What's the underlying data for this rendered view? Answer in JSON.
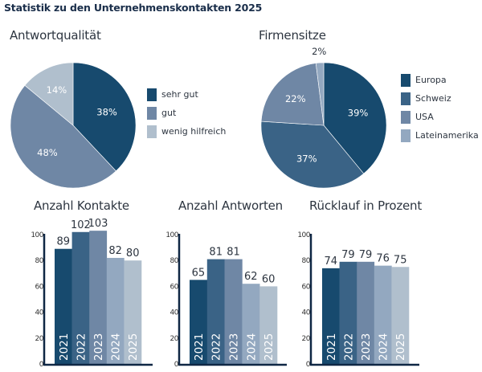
{
  "page_title": "Statistik zu den Unternehmenskontakten 2025",
  "colors": {
    "c1": "#174a6e",
    "c2": "#3a6386",
    "c3": "#6f87a5",
    "c4": "#93a8c0",
    "c5": "#b0bfcd",
    "axis": "#0f2744"
  },
  "chart_data": [
    {
      "type": "pie",
      "title": "Antwortqualität",
      "slices": [
        {
          "label": "sehr gut",
          "value": 38,
          "display": "38%",
          "color": "#174a6e"
        },
        {
          "label": "gut",
          "value": 48,
          "display": "48%",
          "color": "#6f87a5"
        },
        {
          "label": "wenig hilfreich",
          "value": 14,
          "display": "14%",
          "color": "#b0bfcd"
        }
      ],
      "legend": "right"
    },
    {
      "type": "pie",
      "title": "Firmensitze",
      "slices": [
        {
          "label": "Europa",
          "value": 39,
          "display": "39%",
          "color": "#174a6e"
        },
        {
          "label": "Schweiz",
          "value": 37,
          "display": "37%",
          "color": "#3a6386"
        },
        {
          "label": "USA",
          "value": 22,
          "display": "22%",
          "color": "#6f87a5"
        },
        {
          "label": "Lateinamerika",
          "value": 2,
          "display": "2%",
          "color": "#93a8c0"
        }
      ],
      "legend": "right"
    },
    {
      "type": "bar",
      "title": "Anzahl Kontakte",
      "categories": [
        "2021",
        "2022",
        "2023",
        "2024",
        "2025"
      ],
      "values": [
        89,
        102,
        103,
        82,
        80
      ],
      "colors": [
        "#174a6e",
        "#3a6386",
        "#6f87a5",
        "#93a8c0",
        "#b0bfcd"
      ],
      "ylim": [
        0,
        100
      ],
      "yticks": [
        0,
        20,
        40,
        60,
        80,
        100
      ],
      "xlabel": "",
      "ylabel": "",
      "grid": false
    },
    {
      "type": "bar",
      "title": "Anzahl Antworten",
      "categories": [
        "2021",
        "2022",
        "2023",
        "2024",
        "2025"
      ],
      "values": [
        65,
        81,
        81,
        62,
        60
      ],
      "colors": [
        "#174a6e",
        "#3a6386",
        "#6f87a5",
        "#93a8c0",
        "#b0bfcd"
      ],
      "ylim": [
        0,
        100
      ],
      "yticks": [
        0,
        20,
        40,
        60,
        80,
        100
      ],
      "xlabel": "",
      "ylabel": "",
      "grid": false
    },
    {
      "type": "bar",
      "title": "Rücklauf in Prozent",
      "categories": [
        "2021",
        "2022",
        "2023",
        "2024",
        "2025"
      ],
      "values": [
        74,
        79,
        79,
        76,
        75
      ],
      "colors": [
        "#174a6e",
        "#3a6386",
        "#6f87a5",
        "#93a8c0",
        "#b0bfcd"
      ],
      "ylim": [
        0,
        100
      ],
      "yticks": [
        0,
        20,
        40,
        60,
        80,
        100
      ],
      "xlabel": "",
      "ylabel": "",
      "grid": false
    }
  ]
}
